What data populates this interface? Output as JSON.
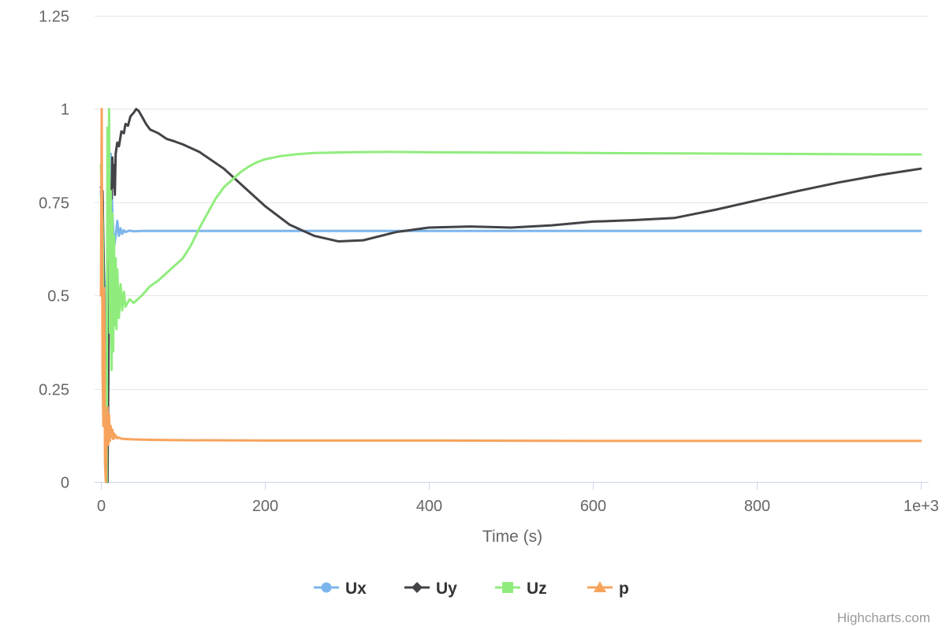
{
  "credits": "Highcharts.com",
  "colors": {
    "grid": "#e6e6e6",
    "axis_line": "#ccd6eb",
    "tick_text": "#666666",
    "legend_text": "#333333",
    "credits_text": "#999999"
  },
  "chart_data": {
    "type": "line",
    "xlabel": "Time (s)",
    "ylabel": "",
    "xlim": [
      0,
      1000
    ],
    "ylim": [
      0,
      1.25
    ],
    "x_ticks": [
      0,
      200,
      400,
      600,
      800,
      1000
    ],
    "x_tick_labels": [
      "0",
      "200",
      "400",
      "600",
      "800",
      "1e+3"
    ],
    "y_ticks": [
      0,
      0.25,
      0.5,
      0.75,
      1,
      1.25
    ],
    "y_tick_labels": [
      "0",
      "0.25",
      "0.5",
      "0.75",
      "1",
      "1.25"
    ],
    "grid": true,
    "legend_position": "bottom-center",
    "series": [
      {
        "name": "Ux",
        "color": "#7cb5ec",
        "marker": "circle",
        "x": [
          0,
          2,
          4,
          6,
          8,
          10,
          12,
          14,
          16,
          18,
          20,
          22,
          24,
          26,
          28,
          30,
          35,
          40,
          50,
          100,
          200,
          400,
          600,
          800,
          1000
        ],
        "y": [
          0.78,
          0.68,
          0.55,
          0.45,
          0.0,
          0.62,
          0.88,
          0.72,
          0.63,
          0.66,
          0.7,
          0.66,
          0.68,
          0.665,
          0.675,
          0.67,
          0.674,
          0.672,
          0.673,
          0.673,
          0.673,
          0.673,
          0.673,
          0.673,
          0.673
        ]
      },
      {
        "name": "Uy",
        "color": "#434348",
        "marker": "diamond",
        "x": [
          0,
          2,
          4,
          6,
          8,
          10,
          12,
          13,
          14,
          15,
          16,
          17,
          18,
          20,
          22,
          25,
          28,
          30,
          33,
          36,
          40,
          43,
          46,
          50,
          55,
          60,
          65,
          70,
          80,
          90,
          100,
          120,
          150,
          180,
          200,
          230,
          260,
          290,
          320,
          360,
          400,
          450,
          500,
          550,
          600,
          650,
          700,
          750,
          800,
          850,
          900,
          950,
          1000
        ],
        "y": [
          0.79,
          0.78,
          0.5,
          0.05,
          0.0,
          0.55,
          0.8,
          0.76,
          0.87,
          0.79,
          0.85,
          0.77,
          0.88,
          0.91,
          0.9,
          0.94,
          0.935,
          0.96,
          0.955,
          0.98,
          0.99,
          1.0,
          0.995,
          0.98,
          0.96,
          0.945,
          0.94,
          0.935,
          0.92,
          0.913,
          0.905,
          0.885,
          0.84,
          0.78,
          0.74,
          0.69,
          0.66,
          0.645,
          0.648,
          0.67,
          0.682,
          0.685,
          0.682,
          0.688,
          0.698,
          0.702,
          0.708,
          0.73,
          0.755,
          0.78,
          0.803,
          0.823,
          0.84
        ]
      },
      {
        "name": "Uz",
        "color": "#90ed7d",
        "marker": "square",
        "x": [
          0,
          2,
          4,
          6,
          7,
          8,
          9,
          10,
          11,
          12,
          13,
          14,
          15,
          16,
          17,
          18,
          19,
          20,
          22,
          24,
          26,
          28,
          30,
          35,
          40,
          50,
          60,
          70,
          80,
          90,
          100,
          110,
          120,
          130,
          140,
          150,
          160,
          170,
          180,
          190,
          200,
          220,
          240,
          260,
          300,
          350,
          400,
          500,
          600,
          700,
          800,
          900,
          1000
        ],
        "y": [
          0.85,
          0.7,
          0.3,
          0.05,
          0.0,
          0.95,
          0.6,
          1.0,
          0.4,
          0.78,
          0.3,
          0.72,
          0.35,
          0.66,
          0.42,
          0.6,
          0.41,
          0.57,
          0.44,
          0.53,
          0.46,
          0.51,
          0.47,
          0.49,
          0.48,
          0.5,
          0.525,
          0.54,
          0.56,
          0.58,
          0.6,
          0.635,
          0.68,
          0.72,
          0.76,
          0.79,
          0.81,
          0.83,
          0.845,
          0.857,
          0.865,
          0.874,
          0.879,
          0.882,
          0.884,
          0.885,
          0.884,
          0.883,
          0.882,
          0.881,
          0.88,
          0.879,
          0.878
        ]
      },
      {
        "name": "p",
        "color": "#f7a35c",
        "marker": "triangle",
        "x": [
          0,
          1,
          2,
          3,
          4,
          5,
          6,
          7,
          8,
          9,
          10,
          11,
          12,
          13,
          14,
          15,
          16,
          17,
          18,
          20,
          22,
          25,
          30,
          40,
          60,
          100,
          200,
          400,
          600,
          800,
          1000
        ],
        "y": [
          0.5,
          1.0,
          0.3,
          0.15,
          0.52,
          0.05,
          0.0,
          0.15,
          0.2,
          0.1,
          0.18,
          0.11,
          0.15,
          0.12,
          0.14,
          0.115,
          0.13,
          0.118,
          0.125,
          0.117,
          0.119,
          0.116,
          0.115,
          0.114,
          0.113,
          0.112,
          0.111,
          0.111,
          0.11,
          0.11,
          0.11
        ]
      }
    ]
  }
}
